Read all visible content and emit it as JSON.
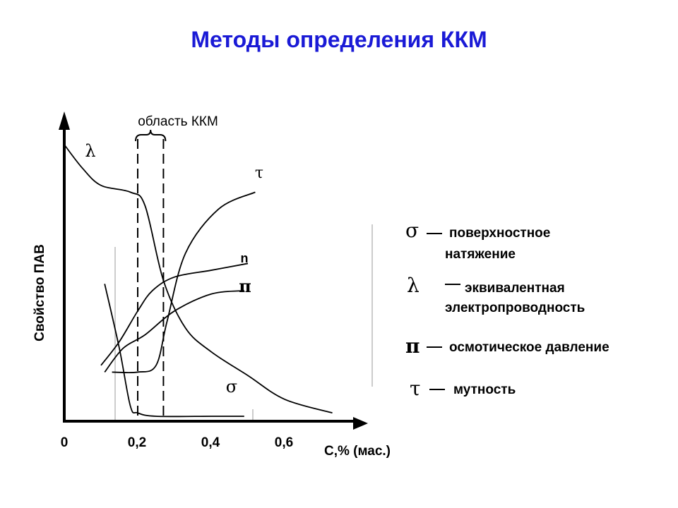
{
  "title": "Методы определения ККМ",
  "colors": {
    "title": "#1a1ad6",
    "ink": "#000000"
  },
  "chart_data": {
    "type": "line",
    "ylabel": "Свойство ПАВ",
    "xlabel": "C,% (мас.)",
    "xticks": [
      "0",
      "0,2",
      "0,4",
      "0,6"
    ],
    "xlim": [
      0,
      0.8
    ],
    "y_scale": "arbitrary (no numeric ticks)",
    "grid": false,
    "cmc_region": {
      "label": "область ККМ",
      "x": [
        0.2,
        0.27
      ]
    },
    "series": [
      {
        "name": "λ",
        "points": [
          [
            0.0,
            0.8
          ],
          [
            0.05,
            0.73
          ],
          [
            0.1,
            0.68
          ],
          [
            0.18,
            0.66
          ],
          [
            0.22,
            0.62
          ],
          [
            0.27,
            0.4
          ],
          [
            0.33,
            0.26
          ],
          [
            0.4,
            0.19
          ],
          [
            0.5,
            0.12
          ],
          [
            0.6,
            0.05
          ],
          [
            0.73,
            0.01
          ]
        ]
      },
      {
        "name": "τ",
        "points": [
          [
            0.13,
            0.13
          ],
          [
            0.2,
            0.13
          ],
          [
            0.25,
            0.15
          ],
          [
            0.28,
            0.28
          ],
          [
            0.33,
            0.48
          ],
          [
            0.42,
            0.61
          ],
          [
            0.52,
            0.66
          ]
        ]
      },
      {
        "name": "n",
        "points": [
          [
            0.1,
            0.15
          ],
          [
            0.15,
            0.22
          ],
          [
            0.2,
            0.31
          ],
          [
            0.24,
            0.37
          ],
          [
            0.3,
            0.41
          ],
          [
            0.4,
            0.43
          ],
          [
            0.5,
            0.45
          ]
        ]
      },
      {
        "name": "π",
        "points": [
          [
            0.11,
            0.13
          ],
          [
            0.16,
            0.2
          ],
          [
            0.22,
            0.24
          ],
          [
            0.3,
            0.31
          ],
          [
            0.4,
            0.36
          ],
          [
            0.49,
            0.37
          ]
        ]
      },
      {
        "name": "σ",
        "points": [
          [
            0.11,
            0.39
          ],
          [
            0.15,
            0.2
          ],
          [
            0.18,
            0.03
          ],
          [
            0.2,
            0.01
          ],
          [
            0.25,
            0.0
          ],
          [
            0.4,
            0.0
          ],
          [
            0.49,
            0.0
          ]
        ]
      }
    ]
  },
  "legend": [
    {
      "symbol": "σ",
      "dash": "–",
      "line1": "поверхностное",
      "line2": "натяжение"
    },
    {
      "symbol": "λ",
      "dash": "–",
      "line1": "эквивалентная",
      "line2": "электропроводность"
    },
    {
      "symbol": "π",
      "dash": "–",
      "line1": "осмотическое давление",
      "line2": ""
    },
    {
      "symbol": "τ",
      "dash": "–",
      "line1": "мутность",
      "line2": ""
    }
  ]
}
